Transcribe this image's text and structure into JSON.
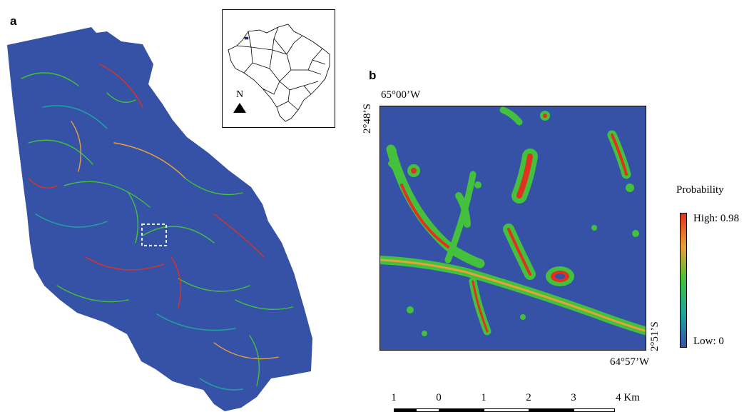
{
  "panel_a": {
    "letter": "a",
    "map_fill": "#3552a6"
  },
  "inset": {
    "north_label": "N",
    "highlight_color": "#1f3a93"
  },
  "panel_b": {
    "letter": "b",
    "top_left_lon": "65°00’W",
    "top_left_lat": "2°48’S",
    "bottom_right_lat": "2°51’S",
    "bottom_right_lon": "64°57’W",
    "background_color": "#3552a6"
  },
  "legend": {
    "title": "Probability",
    "high_label": "High: 0.98",
    "low_label": "Low: 0",
    "colors": [
      "#e0321e",
      "#e8a23a",
      "#43c03c",
      "#1fa5a0",
      "#3552a6"
    ]
  },
  "scale_bar": {
    "ticks": [
      "1",
      "0",
      "1",
      "2",
      "3",
      "4 Km"
    ]
  }
}
